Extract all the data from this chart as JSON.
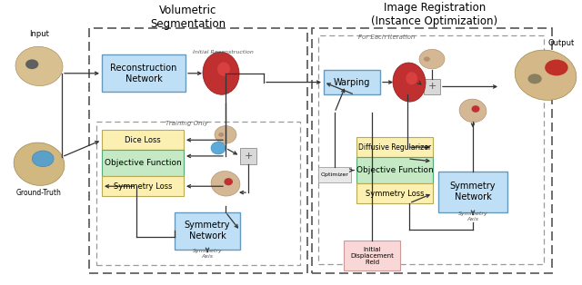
{
  "title_left": "Volumetric\nSegmentation",
  "title_right": "Image Registration\n(Instance Optimization)",
  "subtitle_iter": "For Each Iteration",
  "label_input": "Input",
  "label_output": "Output",
  "label_ground_truth": "Ground-Truth",
  "label_training_only": "Training Only",
  "label_initial_reconstruction": "Initial Reconstruction",
  "label_symmetry_axis_left": "Symmetry\nAxis",
  "label_symmetry_axis_right": "Symmetry\nAxis",
  "label_initial_displacement": "Initial\nDisplacement\nField",
  "label_optimizer": "Optimizer",
  "box_recon_network": "Reconstruction\nNetwork",
  "box_dice_loss": "Dice Loss",
  "box_obj_func": "Objective Function",
  "box_sym_loss": "Symmetry Loss",
  "box_sym_network": "Symmetry\nNetwork",
  "box_warping": "Warping",
  "box_diffusive": "Diffusive Regularizer",
  "color_blue_box": "#BEDFF5",
  "color_yellow_box": "#FBF0B2",
  "color_green_box": "#C5E8C5",
  "color_pink_box": "#FAD7D7",
  "color_grey_box": "#D8D8D8",
  "bg_color": "#FFFFFF",
  "arrow_color": "#333333"
}
